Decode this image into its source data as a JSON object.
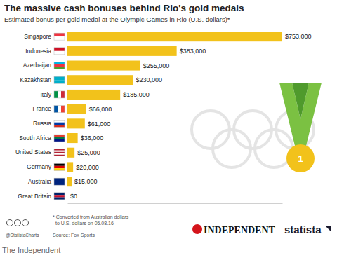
{
  "chart_data": {
    "type": "bar",
    "orientation": "horizontal",
    "title": "The massive cash bonuses behind Rio's gold medals",
    "subtitle": "Estimated bonus per gold medal at the Olympic Games in Rio (U.S. dollars)*",
    "categories": [
      "Singapore",
      "Indonesia",
      "Azerbaijan",
      "Kazakhstan",
      "Italy",
      "France",
      "Russia",
      "South Africa",
      "United States",
      "Germany",
      "Australia",
      "Great Britain"
    ],
    "values": [
      753000,
      383000,
      255000,
      230000,
      185000,
      66000,
      61000,
      36000,
      25000,
      20000,
      15000,
      0
    ],
    "value_labels": [
      "$753,000",
      "$383,000",
      "$255,000",
      "$230,000",
      "$185,000",
      "$66,000",
      "$61,000",
      "$36,000",
      "$25,000",
      "$20,000",
      "$15,000",
      "$0"
    ],
    "data_labels": true,
    "tick_labels": "y",
    "color": "#f2c21b",
    "xlim": [
      0,
      753000
    ],
    "annotations": {
      "medal": "1",
      "footnote": "* Converted from Australian dollars to U.S. dollars on 05.08.16",
      "handle": "@StatistaCharts",
      "source": "Source: Fox Sports",
      "publisher": "INDEPENDENT",
      "brand": "statista",
      "caption": "The Independent"
    }
  }
}
